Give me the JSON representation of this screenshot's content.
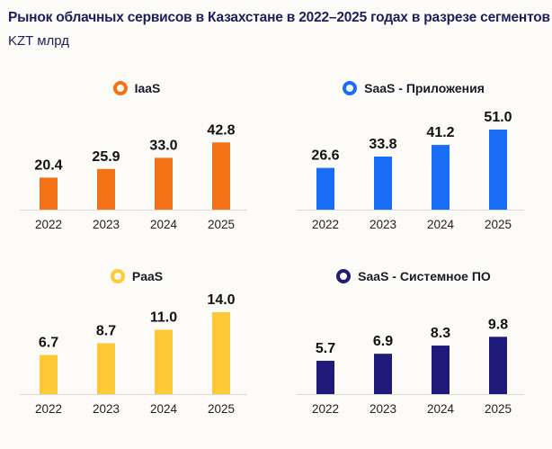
{
  "header": {
    "title": "Рынок облачных сервисов в Казахстане в 2022–2025 годах в разрезе сегментов",
    "subtitle": "KZT млрд"
  },
  "chart_data": [
    {
      "type": "bar",
      "legend": "IaaS",
      "color": "#F47216",
      "categories": [
        "2022",
        "2023",
        "2024",
        "2025"
      ],
      "values": [
        20.4,
        25.9,
        33.0,
        42.8
      ],
      "labels": [
        "20.4",
        "25.9",
        "33.0",
        "42.8"
      ],
      "ylim": [
        0,
        55
      ]
    },
    {
      "type": "bar",
      "legend": "SaaS - Приложения",
      "color": "#1A6EF5",
      "categories": [
        "2022",
        "2023",
        "2024",
        "2025"
      ],
      "values": [
        26.6,
        33.8,
        41.2,
        51.0
      ],
      "labels": [
        "26.6",
        "33.8",
        "41.2",
        "51.0"
      ],
      "ylim": [
        0,
        55
      ]
    },
    {
      "type": "bar",
      "legend": "PaaS",
      "color": "#FFC835",
      "categories": [
        "2022",
        "2023",
        "2024",
        "2025"
      ],
      "values": [
        6.7,
        8.7,
        11.0,
        14.0
      ],
      "labels": [
        "6.7",
        "8.7",
        "11.0",
        "14.0"
      ],
      "ylim": [
        0,
        15
      ]
    },
    {
      "type": "bar",
      "legend": "SaaS - Системное ПО",
      "color": "#1E1B7A",
      "categories": [
        "2022",
        "2023",
        "2024",
        "2025"
      ],
      "values": [
        5.7,
        6.9,
        8.3,
        9.8
      ],
      "labels": [
        "5.7",
        "6.9",
        "8.3",
        "9.8"
      ],
      "ylim": [
        0,
        15
      ]
    }
  ]
}
